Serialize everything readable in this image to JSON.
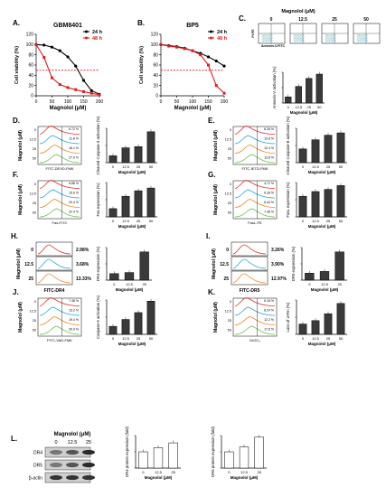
{
  "panels": {
    "A": {
      "letter": "A.",
      "title": "GBM8401",
      "ylabel": "Cell viability (%)",
      "xlabel": "Magnolol (μM)",
      "yticks": [
        "0",
        "20",
        "40",
        "60",
        "80",
        "100",
        "120"
      ],
      "xticks": [
        "0",
        "50",
        "100",
        "150",
        "200"
      ],
      "legend": [
        "24 h",
        "48 h"
      ]
    },
    "B": {
      "letter": "B.",
      "title": "BP5",
      "ylabel": "Cell viability (%)",
      "xlabel": "Magnolol (μM)",
      "yticks": [
        "0",
        "20",
        "40",
        "60",
        "80",
        "100",
        "120"
      ],
      "xticks": [
        "0",
        "50",
        "100",
        "150",
        "200"
      ],
      "legend": [
        "24 h",
        "48 h"
      ]
    },
    "C": {
      "letter": "C.",
      "header": "Magnolol (μM)",
      "doses": [
        "0",
        "12.5",
        "25",
        "50"
      ],
      "yaxis": "PI-PE",
      "xaxis": "Annexin-V-FITC",
      "bar_ylabel": "Annexin-V activation (%)",
      "bar_xlabel": "Magnolol (μM)"
    },
    "D": {
      "letter": "D.",
      "ylabel": "Magnolol (μM)",
      "xaxis": "FITC-DEVD-FMK",
      "bar_ylabel": "Cleaved Caspase-3 activation (%)",
      "bar_xlabel": "Magnolol (μM)",
      "pct": [
        "6.72 %",
        "11.8 %",
        "16.1 %",
        "27.9 %"
      ]
    },
    "E": {
      "letter": "E.",
      "ylabel": "Magnolol (μM)",
      "xaxis": "FITC-IETD-FMK",
      "bar_ylabel": "Cleaved Caspase-8 activation (%)",
      "bar_xlabel": "Magnolol (μM)",
      "pct": [
        "6.28 %",
        "10.8 %",
        "12.4 %",
        "13.8 %"
      ]
    },
    "F": {
      "letter": "F.",
      "ylabel": "Magnolol (μM)",
      "xaxis": "Fas-FITC",
      "bar_ylabel": "Fas expression (%)",
      "bar_xlabel": "Magnolol (μM)",
      "pct": [
        "6.88 %",
        "15.6 %",
        "20.4 %",
        "22.4 %"
      ]
    },
    "G": {
      "letter": "G.",
      "ylabel": "Magnolol (μM)",
      "xaxis": "FasL-PE",
      "bar_ylabel": "FasL expression (%)",
      "bar_xlabel": "Magnolol (μM)",
      "pct": [
        "4.72 %",
        "6.28 %",
        "6.44 %",
        "7.38 %"
      ]
    },
    "H": {
      "letter": "H.",
      "xaxis": "FITC-DR4",
      "ylabel": "Magnolol (μM)",
      "rows": [
        "0",
        "12.5",
        "25"
      ],
      "pct": [
        "2.98%",
        "3.68%",
        "13.33%"
      ],
      "bar_ylabel": "DR4 expression (%)",
      "bar_xlabel": "Magnolol (μM)"
    },
    "I": {
      "letter": "I.",
      "xaxis": "FITC-DR5",
      "ylabel": "Magnolol (μM)",
      "rows": [
        "0",
        "12.5",
        "25"
      ],
      "pct": [
        "3.26%",
        "3.90%",
        "12.97%"
      ],
      "bar_ylabel": "DR5 expression (%)",
      "bar_xlabel": "Magnolol (μM)"
    },
    "J": {
      "letter": "J.",
      "ylabel": "Magnolol (μM)",
      "xaxis": "FITC-VAD-FMK",
      "bar_ylabel": "Caspase-9 activation (%)",
      "bar_xlabel": "Magnolol (μM)",
      "pct": [
        "7.48 %",
        "13.2 %",
        "19.4 %",
        "30.9 %"
      ]
    },
    "K": {
      "letter": "K.",
      "ylabel": "Magnolol (μM)",
      "xaxis": "DiOC₆",
      "bar_ylabel": "Loss of ΔΨm (%)",
      "bar_xlabel": "Magnolol (μM)",
      "pct": [
        "6.16 %",
        "8.24 %",
        "12.2 %",
        "17.8 %"
      ]
    },
    "L": {
      "letter": "L.",
      "header": "Magnolol (μM)",
      "doses": [
        "0",
        "12.5",
        "25"
      ],
      "bands": [
        "DR4",
        "DR5",
        "β-actin"
      ],
      "bar1_ylabel": "DR4 protein expression (fold)",
      "bar2_ylabel": "DR5 protein expression (fold)",
      "bar_xlabel": "Magnolol (μM)"
    }
  },
  "four_doses": [
    "0",
    "12.5",
    "25",
    "50"
  ],
  "three_doses": [
    "0",
    "12.5",
    "25"
  ],
  "colors": {
    "h24": "#000000",
    "h48": "#e21b1b",
    "ic50": "#e21b1b",
    "bar": "#3a3a3a",
    "hist": [
      "#e0302a",
      "#2aa7e0",
      "#f08a24",
      "#6cc04a"
    ]
  },
  "chart_data": [
    {
      "type": "line",
      "panel": "A",
      "x": [
        0,
        25,
        50,
        75,
        100,
        125,
        150,
        175,
        200
      ],
      "series": [
        {
          "name": "24 h",
          "values": [
            100,
            99,
            95,
            88,
            76,
            58,
            30,
            10,
            3
          ]
        },
        {
          "name": "48 h",
          "values": [
            100,
            75,
            35,
            22,
            16,
            12,
            8,
            5,
            2
          ]
        }
      ],
      "ylim": [
        0,
        120
      ],
      "xlim": [
        0,
        200
      ]
    },
    {
      "type": "line",
      "panel": "B",
      "x": [
        0,
        25,
        50,
        75,
        100,
        125,
        150,
        175,
        200
      ],
      "series": [
        {
          "name": "24 h",
          "values": [
            100,
            98,
            96,
            93,
            88,
            83,
            76,
            68,
            58
          ]
        },
        {
          "name": "48 h",
          "values": [
            100,
            97,
            95,
            92,
            88,
            80,
            60,
            20,
            5
          ]
        }
      ],
      "ylim": [
        0,
        120
      ],
      "xlim": [
        0,
        200
      ]
    },
    {
      "type": "bar",
      "panel": "C",
      "categories": [
        "0",
        "12.5",
        "25",
        "50"
      ],
      "values": [
        10,
        27,
        40,
        47
      ],
      "ylim": [
        0,
        50
      ]
    },
    {
      "type": "bar",
      "panel": "D",
      "categories": [
        "0",
        "12.5",
        "25",
        "50"
      ],
      "values": [
        6,
        13,
        14,
        27
      ],
      "ylim": [
        0,
        30
      ]
    },
    {
      "type": "bar",
      "panel": "E",
      "categories": [
        "0",
        "12.5",
        "25",
        "50"
      ],
      "values": [
        6,
        10,
        12,
        13
      ],
      "ylim": [
        0,
        15
      ]
    },
    {
      "type": "bar",
      "panel": "F",
      "categories": [
        "0",
        "12.5",
        "25",
        "50"
      ],
      "values": [
        6,
        15,
        19,
        21
      ],
      "ylim": [
        0,
        25
      ]
    },
    {
      "type": "bar",
      "panel": "G",
      "categories": [
        "0",
        "12.5",
        "25",
        "50"
      ],
      "values": [
        4.8,
        5.9,
        6.4,
        7.3
      ],
      "ylim": [
        0,
        8
      ]
    },
    {
      "type": "bar",
      "panel": "H",
      "categories": [
        "0",
        "12.5",
        "25"
      ],
      "values": [
        3,
        3.5,
        13
      ],
      "ylim": [
        0,
        15
      ]
    },
    {
      "type": "bar",
      "panel": "I",
      "categories": [
        "0",
        "12.5",
        "25"
      ],
      "values": [
        3.2,
        4,
        13
      ],
      "ylim": [
        0,
        15
      ]
    },
    {
      "type": "bar",
      "panel": "J",
      "categories": [
        "0",
        "12.5",
        "25",
        "50"
      ],
      "values": [
        7,
        13,
        19,
        29
      ],
      "ylim": [
        0,
        30
      ]
    },
    {
      "type": "bar",
      "panel": "K",
      "categories": [
        "0",
        "12.5",
        "25",
        "50"
      ],
      "values": [
        6,
        8,
        12,
        18
      ],
      "ylim": [
        0,
        20
      ]
    },
    {
      "type": "bar",
      "panel": "L1",
      "categories": [
        "0",
        "12.5",
        "25"
      ],
      "values": [
        1.0,
        1.25,
        1.55
      ],
      "ylim": [
        0,
        2
      ]
    },
    {
      "type": "bar",
      "panel": "L2",
      "categories": [
        "0",
        "12.5",
        "25"
      ],
      "values": [
        1.0,
        1.3,
        1.9
      ],
      "ylim": [
        0,
        2
      ]
    }
  ]
}
